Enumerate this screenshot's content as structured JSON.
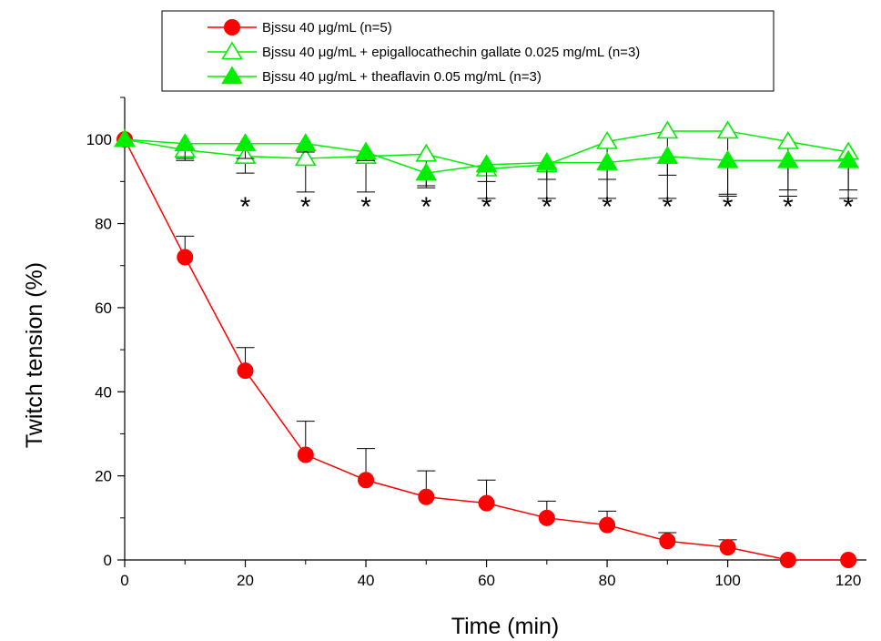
{
  "chart_data": {
    "type": "line",
    "title": "",
    "xlabel": "Time (min)",
    "ylabel": "Twitch tension (%)",
    "xlim": [
      0,
      123
    ],
    "ylim": [
      0,
      110
    ],
    "xticks": [
      0,
      20,
      40,
      60,
      80,
      100,
      120
    ],
    "yticks": [
      0,
      20,
      40,
      60,
      80,
      100
    ],
    "legend_position": "top-center",
    "x": [
      0,
      10,
      20,
      30,
      40,
      50,
      60,
      70,
      80,
      90,
      100,
      110,
      120
    ],
    "series": [
      {
        "name": "Bjssu 40 μg/mL (n=5)",
        "color": "#ff0000",
        "marker": "filled-circle",
        "values": [
          100,
          72,
          45,
          25,
          19,
          15,
          13.5,
          10,
          8.3,
          4.5,
          3,
          0,
          0
        ],
        "error_upper": [
          0,
          5,
          5.5,
          8,
          7.5,
          6.2,
          5.5,
          4,
          3.3,
          2,
          1.8,
          0,
          0
        ]
      },
      {
        "name": "Bjssu 40 μg/mL + epigallocathechin gallate 0.025 mg/mL (n=3)",
        "color": "#00ee00",
        "marker": "open-triangle",
        "values": [
          100,
          97.5,
          96,
          95.5,
          96,
          96.5,
          93,
          94,
          99.5,
          102,
          102,
          99.5,
          97
        ],
        "error_lower": [
          0,
          2.5,
          4,
          8,
          8.5,
          8,
          7,
          8,
          13.5,
          16,
          15.5,
          13,
          11
        ]
      },
      {
        "name": "Bjssu 40 μg/mL + theaflavin 0.05 mg/mL (n=3)",
        "color": "#00ee00",
        "marker": "filled-triangle",
        "values": [
          100,
          99,
          99,
          99,
          97,
          92,
          94,
          94.5,
          94.5,
          96,
          95,
          95,
          95
        ],
        "error_lower": [
          0,
          3.5,
          3.5,
          2,
          2,
          3,
          4,
          4,
          4,
          4.5,
          8,
          7,
          7
        ]
      }
    ],
    "annotations": {
      "mark": "*",
      "x": [
        20,
        30,
        40,
        50,
        60,
        70,
        80,
        90,
        100,
        110,
        120
      ]
    }
  }
}
